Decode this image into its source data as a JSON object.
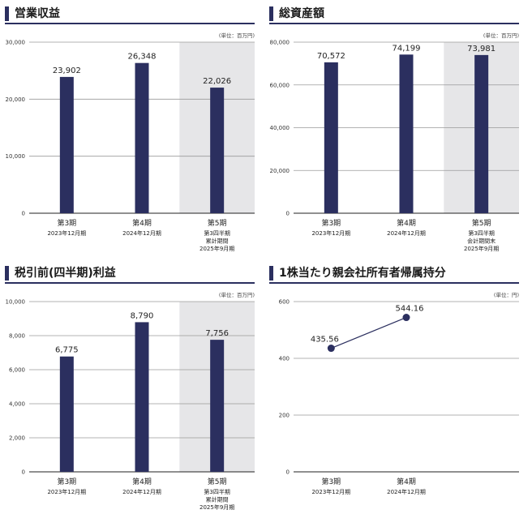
{
  "panels": [
    {
      "title": "営業収益",
      "unit": "(単位：百万円)",
      "chart_data": {
        "type": "bar",
        "ylim": [
          0,
          30000
        ],
        "yticks": [
          "0",
          "10,000",
          "20,000",
          "30,000"
        ],
        "ytick_values": [
          0,
          10000,
          20000,
          30000
        ],
        "categories": [
          [
            "第3期",
            "2023年12月期"
          ],
          [
            "第4期",
            "2024年12月期"
          ],
          [
            "第5期",
            "第3四半期",
            "累計期間",
            "2025年9月期"
          ]
        ],
        "values": [
          23902,
          26348,
          22026
        ],
        "labels": [
          "23,902",
          "26,348",
          "22,026"
        ],
        "highlight_last": true,
        "bar_color": "#2b2f5f"
      }
    },
    {
      "title": "総資産額",
      "unit": "(単位：百万円)",
      "chart_data": {
        "type": "bar",
        "ylim": [
          0,
          80000
        ],
        "yticks": [
          "0",
          "20,000",
          "40,000",
          "60,000",
          "80,000"
        ],
        "ytick_values": [
          0,
          20000,
          40000,
          60000,
          80000
        ],
        "categories": [
          [
            "第3期",
            "2023年12月期"
          ],
          [
            "第4期",
            "2024年12月期"
          ],
          [
            "第5期",
            "第3四半期",
            "会計期間末",
            "2025年9月期"
          ]
        ],
        "values": [
          70572,
          74199,
          73981
        ],
        "labels": [
          "70,572",
          "74,199",
          "73,981"
        ],
        "highlight_last": true,
        "bar_color": "#2b2f5f"
      }
    },
    {
      "title": "税引前(四半期)利益",
      "unit": "(単位：百万円)",
      "chart_data": {
        "type": "bar",
        "ylim": [
          0,
          10000
        ],
        "yticks": [
          "0",
          "2,000",
          "4,000",
          "6,000",
          "8,000",
          "10,000"
        ],
        "ytick_values": [
          0,
          2000,
          4000,
          6000,
          8000,
          10000
        ],
        "categories": [
          [
            "第3期",
            "2023年12月期"
          ],
          [
            "第4期",
            "2024年12月期"
          ],
          [
            "第5期",
            "第3四半期",
            "累計期間",
            "2025年9月期"
          ]
        ],
        "values": [
          6775,
          8790,
          7756
        ],
        "labels": [
          "6,775",
          "8,790",
          "7,756"
        ],
        "highlight_last": true,
        "bar_color": "#2b2f5f"
      }
    },
    {
      "title": "1株当たり親会社所有者帰属持分",
      "unit": "(単位：円)",
      "chart_data": {
        "type": "line",
        "ylim": [
          0,
          600
        ],
        "yticks": [
          "0",
          "200",
          "400",
          "600"
        ],
        "ytick_values": [
          0,
          200,
          400,
          600
        ],
        "categories": [
          [
            "第3期",
            "2023年12月期"
          ],
          [
            "第4期",
            "2024年12月期"
          ]
        ],
        "values": [
          435.56,
          544.16
        ],
        "labels": [
          "435.56",
          "544.16"
        ],
        "highlight_last": false,
        "bar_color": "#2b2f5f"
      }
    }
  ]
}
